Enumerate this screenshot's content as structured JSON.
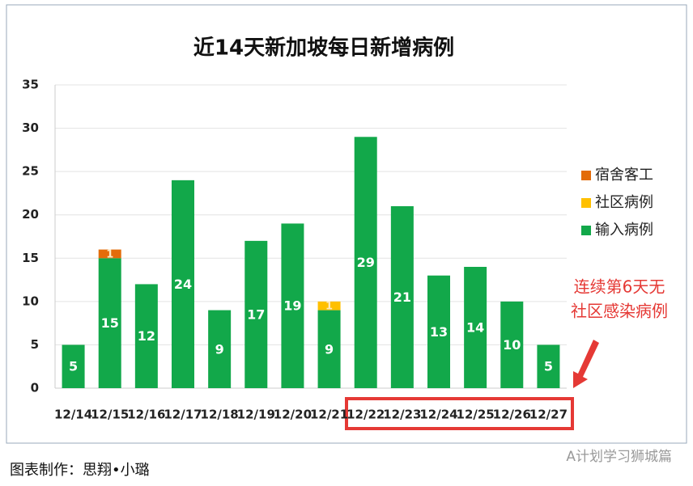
{
  "chart_data": {
    "type": "stacked-bar",
    "title": "近14天新加坡每日新增病例",
    "categories": [
      "12/14",
      "12/15",
      "12/16",
      "12/17",
      "12/18",
      "12/19",
      "12/20",
      "12/21",
      "12/22",
      "12/23",
      "12/24",
      "12/25",
      "12/26",
      "12/27"
    ],
    "series": [
      {
        "name": "输入病例",
        "color": "#12a84a",
        "values": [
          5,
          15,
          12,
          24,
          9,
          17,
          19,
          9,
          29,
          21,
          13,
          14,
          10,
          5
        ]
      },
      {
        "name": "社区病例",
        "color": "#ffc000",
        "values": [
          null,
          null,
          null,
          null,
          null,
          null,
          null,
          1,
          null,
          null,
          null,
          null,
          null,
          null
        ]
      },
      {
        "name": "宿舍客工",
        "color": "#e36c0a",
        "values": [
          null,
          1,
          null,
          null,
          null,
          null,
          null,
          null,
          null,
          null,
          null,
          null,
          null,
          null
        ]
      }
    ],
    "ylim": [
      0,
      35
    ],
    "yticks": [
      0,
      5,
      10,
      15,
      20,
      25,
      30,
      35
    ],
    "grid": true,
    "legend": "right",
    "annotation": [
      "连续第6天无",
      "社区感染病例"
    ],
    "footer": "图表制作：思翔•小璐",
    "watermark": "A计划学习狮城篇"
  }
}
